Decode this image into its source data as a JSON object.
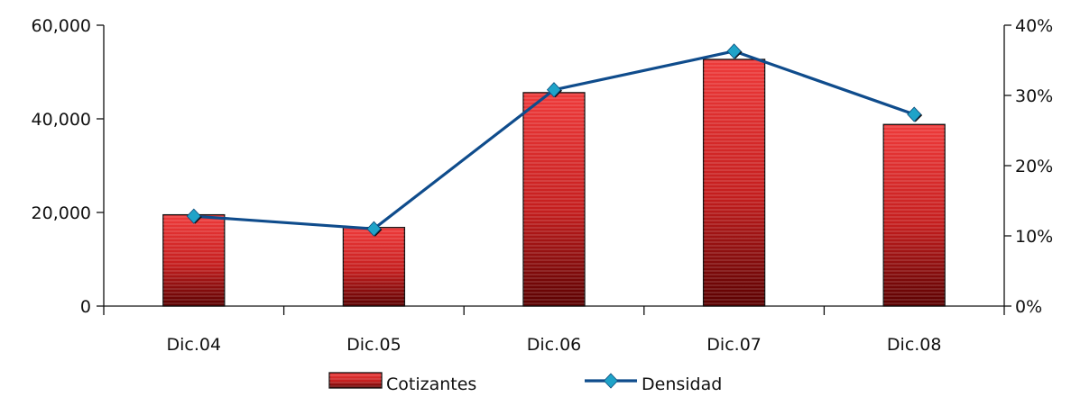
{
  "chart_data": {
    "type": "bar",
    "categories": [
      "Dic.04",
      "Dic.05",
      "Dic.06",
      "Dic.07",
      "Dic.08"
    ],
    "series": [
      {
        "name": "Cotizantes",
        "type": "bar",
        "axis": "left",
        "values": [
          19500,
          16800,
          45600,
          52700,
          38800
        ],
        "color": "#e32a2a",
        "dark_color": "#6a0000"
      },
      {
        "name": "Densidad",
        "type": "line",
        "axis": "right",
        "values": [
          12.8,
          11.0,
          30.8,
          36.3,
          27.3
        ],
        "color": "#0f4c8c",
        "marker_color": "#1fa3c8"
      }
    ],
    "y_left": {
      "min": 0,
      "max": 60000,
      "ticks": [
        0,
        20000,
        40000,
        60000
      ],
      "tick_labels": [
        "0",
        "20,000",
        "40,000",
        "60,000"
      ]
    },
    "y_right": {
      "min": 0,
      "max": 40,
      "ticks": [
        0,
        10,
        20,
        30,
        40
      ],
      "tick_labels": [
        "0%",
        "10%",
        "20%",
        "30%",
        "40%"
      ]
    },
    "title": "",
    "xlabel": "",
    "ylabel": "",
    "grid": false,
    "legend_position": "bottom"
  }
}
